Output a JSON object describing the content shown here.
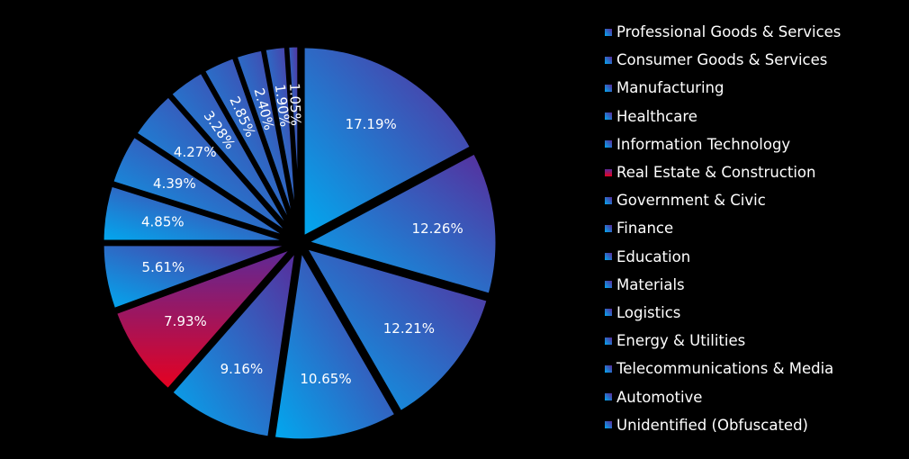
{
  "chart_data": {
    "type": "pie",
    "categories": [
      "Professional Goods & Services",
      "Consumer Goods & Services",
      "Manufacturing",
      "Healthcare",
      "Information Technology",
      "Real Estate & Construction",
      "Government & Civic",
      "Finance",
      "Education",
      "Materials",
      "Logistics",
      "Energy & Utilities",
      "Telecommunications & Media",
      "Automotive",
      "Unidentified (Obfuscated)"
    ],
    "values": [
      17.19,
      12.26,
      12.21,
      10.65,
      9.16,
      7.93,
      5.61,
      4.85,
      4.39,
      4.27,
      3.28,
      2.85,
      2.4,
      1.9,
      1.05
    ],
    "data_labels": [
      "17.19%",
      "12.26%",
      "12.21%",
      "10.65%",
      "9.16%",
      "7.93%",
      "5.61%",
      "4.85%",
      "4.39%",
      "4.27%",
      "3.28%",
      "2.85%",
      "2.40%",
      "1.90%",
      "1.05%"
    ],
    "title": "",
    "legend_position": "right",
    "start_angle": "top (12 o'clock), clockwise",
    "exploded": true,
    "highlight_category": "Real Estate & Construction",
    "colors": {
      "background": "#000000",
      "gradient_light": "#00aaf0",
      "gradient_dark": "#5a2a9a",
      "highlight_top": "#5a2a9a",
      "highlight_bottom": "#e8001e",
      "label_text": "#ffffff",
      "separator": "#000000"
    }
  }
}
